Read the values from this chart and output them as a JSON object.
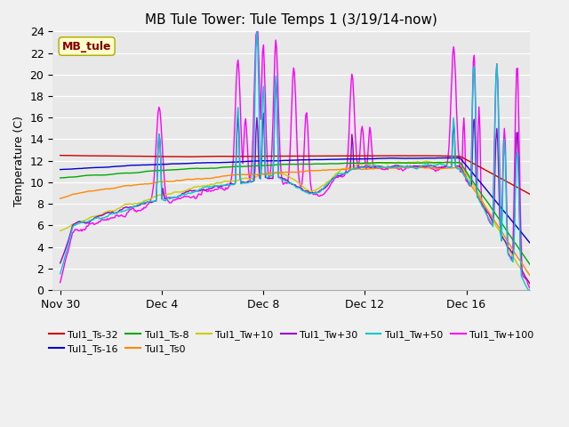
{
  "title": "MB Tule Tower: Tule Temps 1 (3/19/14-now)",
  "ylabel": "Temperature (C)",
  "ylim": [
    0,
    24
  ],
  "yticks": [
    0,
    2,
    4,
    6,
    8,
    10,
    12,
    14,
    16,
    18,
    20,
    22,
    24
  ],
  "xtick_labels": [
    "Nov 30",
    "Dec 4",
    "Dec 8",
    "Dec 12",
    "Dec 16"
  ],
  "xtick_positions": [
    0,
    4,
    8,
    12,
    16
  ],
  "xmin": -0.3,
  "xmax": 18.5,
  "series_colors": {
    "Ts32": "#cc0000",
    "Ts16": "#0000cc",
    "Ts8": "#00aa00",
    "Ts0": "#ff8800",
    "Tw10": "#cccc00",
    "Tw30": "#9900cc",
    "Tw50": "#00cccc",
    "Tw100": "#ff00ff"
  },
  "legend_labels": [
    "Tul1_Ts-32",
    "Tul1_Ts-16",
    "Tul1_Ts-8",
    "Tul1_Ts0",
    "Tul1_Tw+10",
    "Tul1_Tw+30",
    "Tul1_Tw+50",
    "Tul1_Tw+100"
  ],
  "legend_colors": [
    "#cc0000",
    "#0000cc",
    "#00aa00",
    "#ff8800",
    "#cccc00",
    "#9900cc",
    "#00cccc",
    "#ff00ff"
  ],
  "watermark_text": "MB_tule",
  "watermark_bg": "#ffffcc",
  "watermark_fg": "#880000",
  "fig_bg": "#f0f0f0",
  "ax_bg": "#e8e8e8"
}
